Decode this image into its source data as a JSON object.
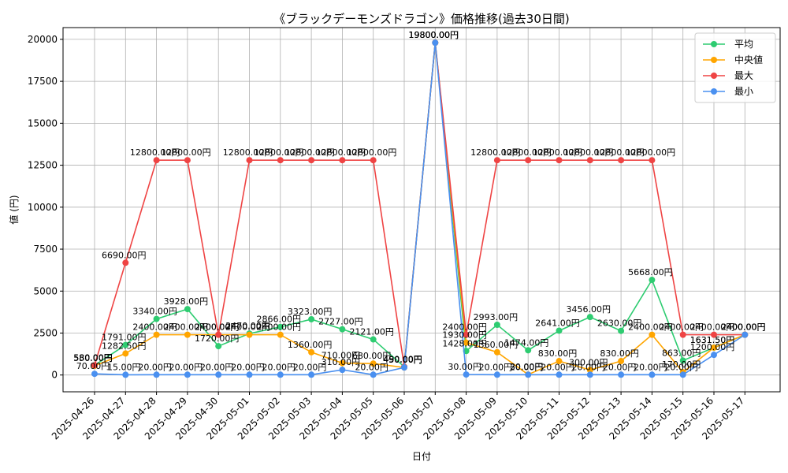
{
  "chart_data": {
    "type": "line",
    "title": "《ブラックデーモンズドラゴン》価格推移(過去30日間)",
    "xlabel": "日付",
    "ylabel": "値 (円)",
    "ylim": [
      -1000,
      20700
    ],
    "yticks": [
      0,
      2500,
      5000,
      7500,
      10000,
      12500,
      15000,
      17500,
      20000
    ],
    "grid": true,
    "legend_position": "top-right",
    "label_suffix": "円",
    "categories": [
      "2025-04-26",
      "2025-04-27",
      "2025-04-28",
      "2025-04-29",
      "2025-04-30",
      "2025-05-01",
      "2025-05-02",
      "2025-05-03",
      "2025-05-04",
      "2025-05-05",
      "2025-05-06",
      "2025-05-07",
      "2025-05-08",
      "2025-05-09",
      "2025-05-10",
      "2025-05-11",
      "2025-05-12",
      "2025-05-13",
      "2025-05-14",
      "2025-05-15",
      "2025-05-16",
      "2025-05-17"
    ],
    "series": [
      {
        "name": "平均",
        "color": "#2ecc71",
        "values": [
          580,
          1791,
          3340,
          3928,
          1720,
          2470,
          2866,
          3323,
          2727,
          2121,
          490,
          19800,
          1428,
          2993,
          1474,
          2641,
          3456,
          2630,
          5668,
          863,
          1631.5,
          2400
        ]
      },
      {
        "name": "中央値",
        "color": "#ffa500",
        "values": [
          550,
          1282.5,
          2400,
          2400,
          2400,
          2400,
          2400,
          1360,
          710,
          680,
          450,
          19800,
          1930,
          1360,
          30,
          830,
          300,
          830,
          2400,
          170,
          1631.5,
          2400
        ]
      },
      {
        "name": "最大",
        "color": "#ef4444",
        "values": [
          580,
          6690,
          12800,
          12800,
          2400,
          12800,
          12800,
          12800,
          12800,
          12800,
          490,
          19800,
          2400,
          12800,
          12800,
          12800,
          12800,
          12800,
          12800,
          2400,
          2400,
          2400
        ]
      },
      {
        "name": "最小",
        "color": "#4a90f0",
        "values": [
          70,
          15,
          20,
          20,
          20,
          20,
          20,
          20,
          310,
          20,
          450,
          19800,
          30,
          20,
          20,
          20,
          20,
          20,
          20,
          20,
          1200,
          2400
        ]
      }
    ]
  }
}
